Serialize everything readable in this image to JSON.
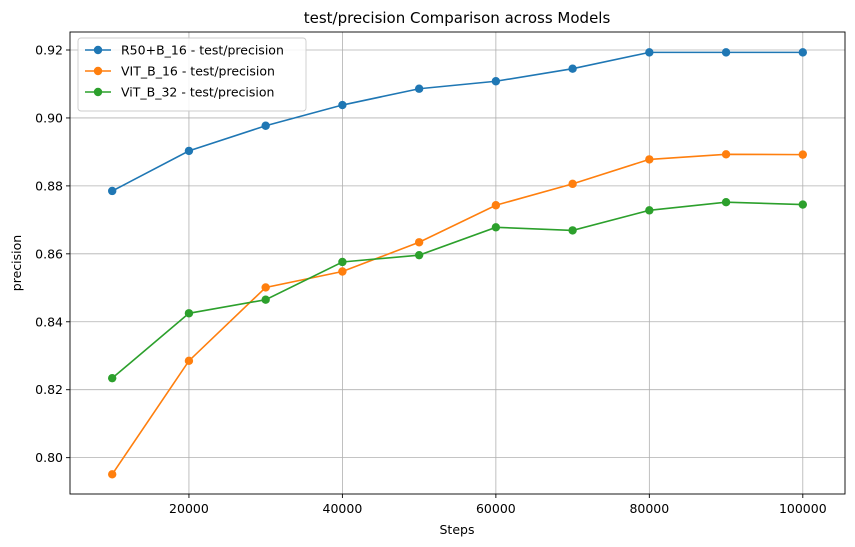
{
  "chart_data": {
    "type": "line",
    "title": "test/precision Comparison across Models",
    "xlabel": "Steps",
    "ylabel": "precision",
    "x": [
      10000,
      20000,
      30000,
      40000,
      50000,
      60000,
      70000,
      80000,
      90000,
      100000
    ],
    "xlim": [
      4500,
      105500
    ],
    "ylim": [
      0.7893,
      0.9253
    ],
    "xticks": [
      20000,
      40000,
      60000,
      80000,
      100000
    ],
    "xtick_labels": [
      "20000",
      "40000",
      "60000",
      "80000",
      "100000"
    ],
    "yticks": [
      0.8,
      0.82,
      0.84,
      0.86,
      0.88,
      0.9,
      0.92
    ],
    "ytick_labels": [
      "0.80",
      "0.82",
      "0.84",
      "0.86",
      "0.88",
      "0.90",
      "0.92"
    ],
    "grid": true,
    "legend_position": "top-left",
    "marker": "circle",
    "series": [
      {
        "name": "R50+B_16 - test/precision",
        "color": "#1f77b4",
        "values": [
          0.8785,
          0.8903,
          0.8977,
          0.9038,
          0.9086,
          0.9108,
          0.9145,
          0.9193,
          0.9193,
          0.9193
        ]
      },
      {
        "name": "VIT_B_16 - test/precision",
        "color": "#ff7f0e",
        "values": [
          0.7951,
          0.8285,
          0.8501,
          0.8548,
          0.8634,
          0.8743,
          0.8806,
          0.8878,
          0.8893,
          0.8892
        ]
      },
      {
        "name": "ViT_B_32 - test/precision",
        "color": "#2ca02c",
        "values": [
          0.8234,
          0.8425,
          0.8465,
          0.8576,
          0.8596,
          0.8678,
          0.8669,
          0.8728,
          0.8752,
          0.8745
        ]
      }
    ]
  }
}
